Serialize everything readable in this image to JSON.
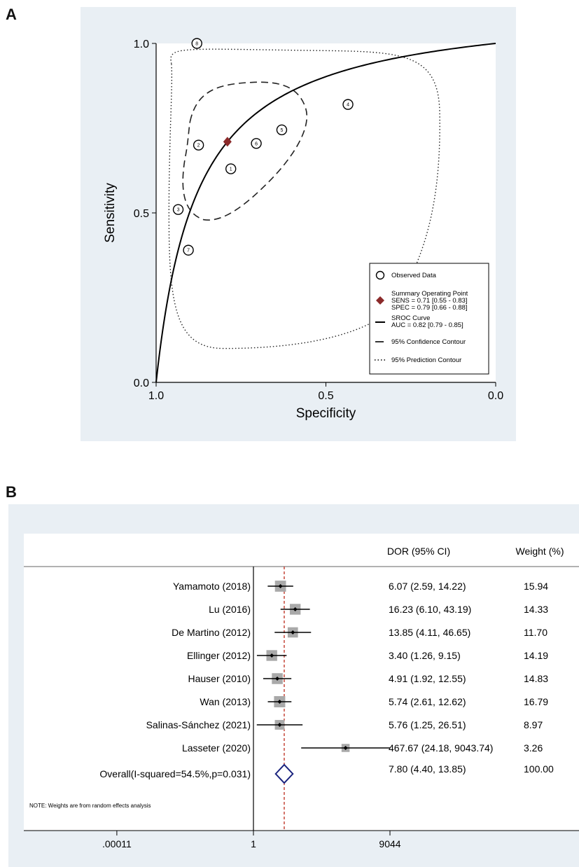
{
  "panels": {
    "a": "A",
    "b": "B"
  },
  "chart_data": [
    {
      "type": "scatter",
      "title": "",
      "xlabel": "Specificity",
      "ylabel": "Sensitivity",
      "x_reversed": true,
      "xlim": [
        1.0,
        0.0
      ],
      "ylim": [
        0.0,
        1.0
      ],
      "x_ticks": [
        "1.0",
        "0.5",
        "0.0"
      ],
      "y_ticks": [
        "0.0",
        "0.5",
        "1.0"
      ],
      "x_tick_values": [
        1.0,
        0.5,
        0.0
      ],
      "y_tick_values": [
        0.0,
        0.5,
        1.0
      ],
      "points": [
        {
          "label": "1",
          "spec": 0.78,
          "sens": 0.63
        },
        {
          "label": "2",
          "spec": 0.875,
          "sens": 0.7
        },
        {
          "label": "3",
          "spec": 0.935,
          "sens": 0.51
        },
        {
          "label": "4",
          "spec": 0.435,
          "sens": 0.82
        },
        {
          "label": "5",
          "spec": 0.63,
          "sens": 0.745
        },
        {
          "label": "6",
          "spec": 0.705,
          "sens": 0.705
        },
        {
          "label": "7",
          "spec": 0.905,
          "sens": 0.39
        },
        {
          "label": "8",
          "spec": 0.88,
          "sens": 1.0
        }
      ],
      "summary_point": {
        "spec": 0.79,
        "sens": 0.71
      },
      "legend": [
        {
          "marker": "circle",
          "lines": [
            "Observed Data"
          ]
        },
        {
          "marker": "diamond",
          "lines": [
            "Summary Operating Point",
            "SENS = 0.71 [0.55 - 0.83]",
            "SPEC = 0.79 [0.66 - 0.88]"
          ]
        },
        {
          "marker": "solid",
          "lines": [
            "SROC Curve",
            "AUC = 0.82 [0.79 - 0.85]"
          ]
        },
        {
          "marker": "dashed",
          "lines": [
            "95% Confidence Contour"
          ]
        },
        {
          "marker": "dotted",
          "lines": [
            "95% Prediction Contour"
          ]
        }
      ],
      "legend_position": "bottom-right",
      "colors": {
        "summary": "#8b2a2a",
        "background": "#e9eff4"
      }
    },
    {
      "type": "forest",
      "header": {
        "dor": "DOR (95% CI)",
        "weight": "Weight (%)"
      },
      "x_ticks": [
        ".00011",
        "1",
        "9044"
      ],
      "log_scale": true,
      "studies": [
        {
          "name": "Yamamoto (2018)",
          "dor": 6.07,
          "lo": 2.59,
          "hi": 14.22,
          "ci": "6.07 (2.59, 14.22)",
          "weight": "15.94"
        },
        {
          "name": "Lu (2016)",
          "dor": 16.23,
          "lo": 6.1,
          "hi": 43.19,
          "ci": "16.23 (6.10, 43.19)",
          "weight": "14.33"
        },
        {
          "name": "De Martino (2012)",
          "dor": 13.85,
          "lo": 4.11,
          "hi": 46.65,
          "ci": "13.85 (4.11, 46.65)",
          "weight": "11.70"
        },
        {
          "name": "Ellinger (2012)",
          "dor": 3.4,
          "lo": 1.26,
          "hi": 9.15,
          "ci": "3.40 (1.26, 9.15)",
          "weight": "14.19"
        },
        {
          "name": "Hauser (2010)",
          "dor": 4.91,
          "lo": 1.92,
          "hi": 12.55,
          "ci": "4.91 (1.92, 12.55)",
          "weight": "14.83"
        },
        {
          "name": "Wan (2013)",
          "dor": 5.74,
          "lo": 2.61,
          "hi": 12.62,
          "ci": "5.74 (2.61, 12.62)",
          "weight": "16.79"
        },
        {
          "name": "Salinas-Sánchez (2021)",
          "dor": 5.76,
          "lo": 1.25,
          "hi": 26.51,
          "ci": "5.76 (1.25, 26.51)",
          "weight": "8.97"
        },
        {
          "name": "Lasseter (2020)",
          "dor": 467.67,
          "lo": 24.18,
          "hi": 9043.74,
          "ci": "467.67 (24.18, 9043.74)",
          "weight": "3.26"
        }
      ],
      "overall": {
        "name": "Overall(I-squared=54.5%,p=0.031)",
        "dor": 7.8,
        "lo": 4.4,
        "hi": 13.85,
        "ci": "7.80 (4.40, 13.85)",
        "weight": "100.00"
      },
      "note": "NOTE: Weights are from random effects analysis",
      "colors": {
        "diamond": "#1a237e",
        "ref_line": "#c0392b",
        "box": "#a9a9a9"
      }
    }
  ]
}
